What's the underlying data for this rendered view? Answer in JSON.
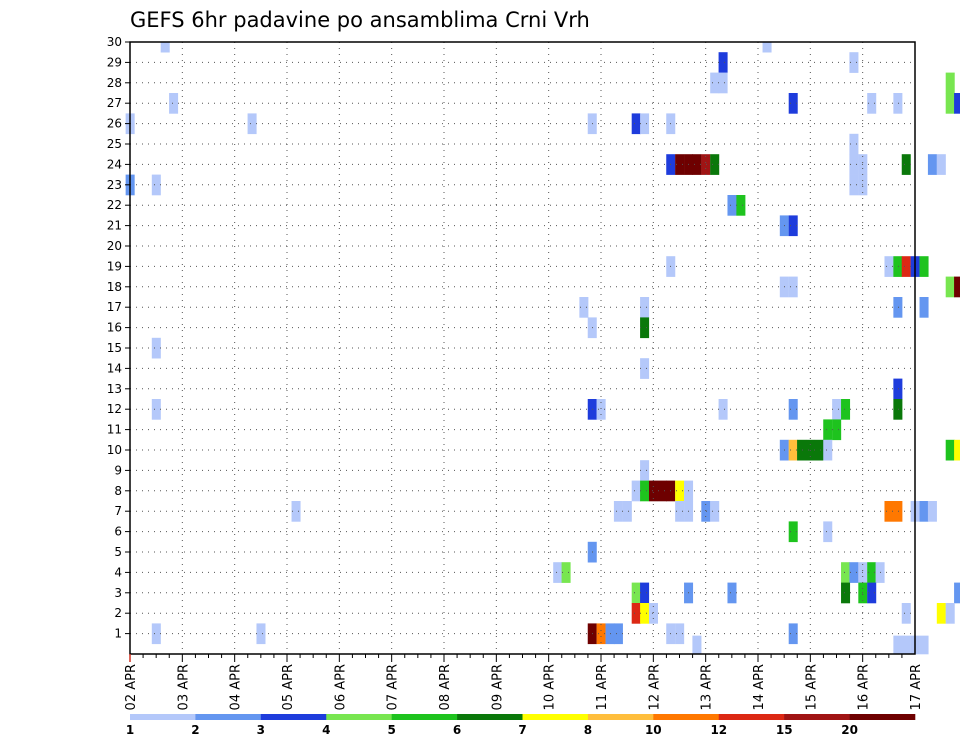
{
  "chart_data": {
    "type": "heatmap",
    "title": "GEFS 6hr padavine po ansamblima Crni Vrh",
    "x_tick_labels": [
      "02 APR",
      "03 APR",
      "04 APR",
      "05 APR",
      "06 APR",
      "07 APR",
      "08 APR",
      "09 APR",
      "10 APR",
      "11 APR",
      "12 APR",
      "13 APR",
      "14 APR",
      "15 APR",
      "16 APR",
      "17 APR"
    ],
    "y_tick_labels": [
      "1",
      "2",
      "3",
      "4",
      "5",
      "6",
      "7",
      "8",
      "9",
      "10",
      "11",
      "12",
      "13",
      "14",
      "15",
      "16",
      "17",
      "18",
      "19",
      "20",
      "21",
      "22",
      "23",
      "24",
      "25",
      "26",
      "27",
      "28",
      "29",
      "30"
    ],
    "colorbar": {
      "tick_labels": [
        "1",
        "2",
        "3",
        "4",
        "5",
        "6",
        "7",
        "8",
        "10",
        "12",
        "15",
        "20"
      ],
      "colors": [
        "#b4c8fa",
        "#6496f0",
        "#1e3cdc",
        "#78e650",
        "#1ec31e",
        "#0a780a",
        "#ffff00",
        "#ffbe3c",
        "#ff7800",
        "#dc2814",
        "#a01414",
        "#6e0000"
      ]
    },
    "cells": [
      [
        2.67,
        30,
        1
      ],
      [
        14.17,
        30,
        1
      ],
      [
        13.33,
        29,
        3
      ],
      [
        15.83,
        29,
        1
      ],
      [
        13.17,
        28,
        1
      ],
      [
        13.33,
        28,
        1
      ],
      [
        17.67,
        28,
        4
      ],
      [
        2.83,
        27,
        1
      ],
      [
        14.67,
        27,
        3
      ],
      [
        16.17,
        27,
        1
      ],
      [
        16.67,
        27,
        1
      ],
      [
        17.67,
        27,
        4
      ],
      [
        17.83,
        27,
        3
      ],
      [
        2.0,
        26,
        1
      ],
      [
        4.33,
        26,
        1
      ],
      [
        10.83,
        26,
        1
      ],
      [
        11.67,
        26,
        3
      ],
      [
        11.83,
        26,
        1
      ],
      [
        12.33,
        26,
        1
      ],
      [
        15.83,
        25,
        1
      ],
      [
        12.33,
        24,
        3
      ],
      [
        12.5,
        24,
        12
      ],
      [
        12.67,
        24,
        12
      ],
      [
        12.83,
        24,
        12
      ],
      [
        13.0,
        24,
        11
      ],
      [
        13.17,
        24,
        6
      ],
      [
        15.83,
        24,
        1
      ],
      [
        16.0,
        24,
        1
      ],
      [
        16.83,
        24,
        6
      ],
      [
        17.33,
        24,
        2
      ],
      [
        17.5,
        24,
        1
      ],
      [
        15.83,
        23,
        1
      ],
      [
        16.0,
        23,
        1
      ],
      [
        2.0,
        23,
        2
      ],
      [
        2.5,
        23,
        1
      ],
      [
        13.5,
        22,
        2
      ],
      [
        13.67,
        22,
        5
      ],
      [
        14.5,
        21,
        2
      ],
      [
        14.67,
        21,
        3
      ],
      [
        12.33,
        19,
        1
      ],
      [
        16.5,
        19,
        1
      ],
      [
        16.67,
        19,
        5
      ],
      [
        16.83,
        19,
        10
      ],
      [
        17.0,
        19,
        3
      ],
      [
        17.17,
        19,
        5
      ],
      [
        14.5,
        18,
        1
      ],
      [
        14.67,
        18,
        1
      ],
      [
        17.67,
        18,
        4
      ],
      [
        17.83,
        18,
        12
      ],
      [
        10.67,
        17,
        1
      ],
      [
        11.83,
        17,
        1
      ],
      [
        16.67,
        17,
        2
      ],
      [
        17.17,
        17,
        2
      ],
      [
        10.83,
        16,
        1
      ],
      [
        11.83,
        16,
        6
      ],
      [
        2.5,
        15,
        1
      ],
      [
        11.83,
        14,
        1
      ],
      [
        16.67,
        13,
        3
      ],
      [
        2.5,
        12,
        1
      ],
      [
        10.83,
        12,
        3
      ],
      [
        11.0,
        12,
        1
      ],
      [
        13.33,
        12,
        1
      ],
      [
        14.67,
        12,
        2
      ],
      [
        15.5,
        12,
        1
      ],
      [
        15.67,
        12,
        5
      ],
      [
        16.67,
        12,
        6
      ],
      [
        15.33,
        11,
        5
      ],
      [
        15.5,
        11,
        5
      ],
      [
        14.5,
        10,
        2
      ],
      [
        14.67,
        10,
        8
      ],
      [
        14.83,
        10,
        6
      ],
      [
        15.0,
        10,
        6
      ],
      [
        15.17,
        10,
        6
      ],
      [
        15.33,
        10,
        1
      ],
      [
        17.67,
        10,
        5
      ],
      [
        17.83,
        10,
        7
      ],
      [
        11.83,
        9,
        1
      ],
      [
        11.67,
        8,
        1
      ],
      [
        11.83,
        8,
        5
      ],
      [
        12.0,
        8,
        12
      ],
      [
        12.17,
        8,
        12
      ],
      [
        12.33,
        8,
        12
      ],
      [
        12.5,
        8,
        7
      ],
      [
        12.67,
        8,
        1
      ],
      [
        5.17,
        7,
        1
      ],
      [
        11.33,
        7,
        1
      ],
      [
        11.5,
        7,
        1
      ],
      [
        12.5,
        7,
        1
      ],
      [
        12.67,
        7,
        1
      ],
      [
        13.0,
        7,
        2
      ],
      [
        13.17,
        7,
        1
      ],
      [
        16.5,
        7,
        9
      ],
      [
        16.67,
        7,
        9
      ],
      [
        17.0,
        7,
        1
      ],
      [
        17.17,
        7,
        2
      ],
      [
        17.33,
        7,
        1
      ],
      [
        14.67,
        6,
        5
      ],
      [
        15.33,
        6,
        1
      ],
      [
        10.83,
        5,
        2
      ],
      [
        10.17,
        4,
        1
      ],
      [
        10.33,
        4,
        4
      ],
      [
        15.67,
        4,
        4
      ],
      [
        15.83,
        4,
        2
      ],
      [
        16.0,
        4,
        1
      ],
      [
        16.17,
        4,
        5
      ],
      [
        16.33,
        4,
        1
      ],
      [
        11.67,
        3,
        4
      ],
      [
        11.83,
        3,
        3
      ],
      [
        12.67,
        3,
        2
      ],
      [
        13.5,
        3,
        2
      ],
      [
        15.67,
        3,
        6
      ],
      [
        16.0,
        3,
        5
      ],
      [
        16.17,
        3,
        3
      ],
      [
        17.83,
        3,
        2
      ],
      [
        11.67,
        2,
        10
      ],
      [
        11.83,
        2,
        7
      ],
      [
        12.0,
        2,
        1
      ],
      [
        16.83,
        2,
        1
      ],
      [
        17.5,
        2,
        7
      ],
      [
        17.67,
        2,
        1
      ],
      [
        2.5,
        1,
        1
      ],
      [
        4.5,
        1,
        1
      ],
      [
        10.83,
        1,
        12
      ],
      [
        11.0,
        1,
        9
      ],
      [
        11.17,
        1,
        2
      ],
      [
        11.33,
        1,
        2
      ],
      [
        12.33,
        1,
        1
      ],
      [
        12.5,
        1,
        1
      ],
      [
        14.67,
        1,
        2
      ],
      [
        12.83,
        0.4,
        1
      ],
      [
        16.67,
        0.4,
        1
      ],
      [
        16.83,
        0.4,
        1
      ],
      [
        17.0,
        0.4,
        1
      ],
      [
        17.17,
        0.4,
        1
      ]
    ]
  }
}
